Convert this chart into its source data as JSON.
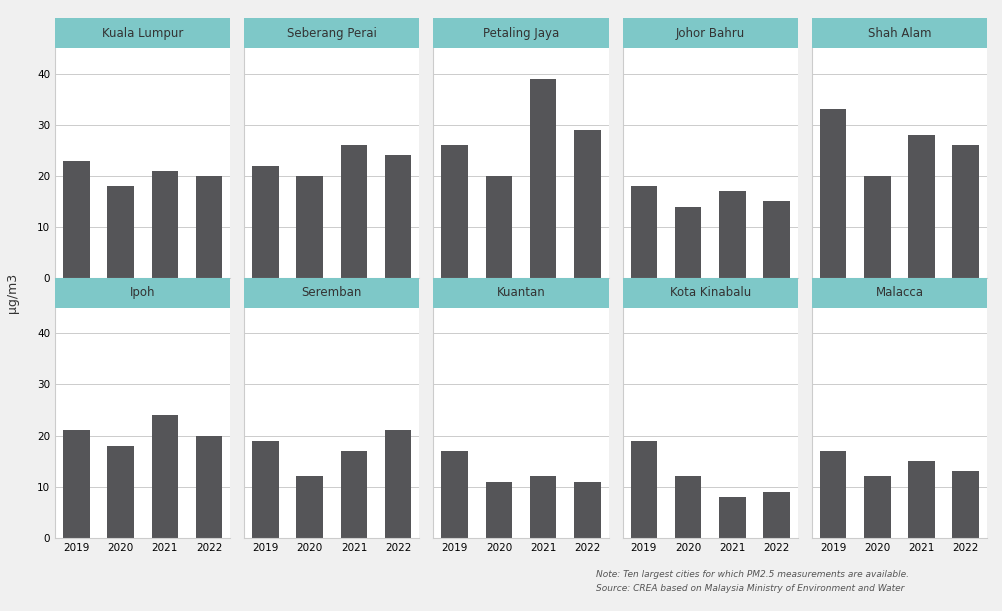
{
  "cities_row1": [
    "Kuala Lumpur",
    "Seberang Perai",
    "Petaling Jaya",
    "Johor Bahru",
    "Shah Alam"
  ],
  "cities_row2": [
    "Ipoh",
    "Seremban",
    "Kuantan",
    "Kota Kinabalu",
    "Malacca"
  ],
  "years": [
    2019,
    2020,
    2021,
    2022
  ],
  "values_row1": [
    [
      23,
      18,
      21,
      20
    ],
    [
      22,
      20,
      26,
      24
    ],
    [
      26,
      20,
      39,
      29
    ],
    [
      18,
      14,
      17,
      15
    ],
    [
      33,
      20,
      28,
      26
    ]
  ],
  "values_row2": [
    [
      21,
      18,
      24,
      20
    ],
    [
      19,
      12,
      17,
      21
    ],
    [
      17,
      11,
      12,
      11
    ],
    [
      19,
      12,
      8,
      9
    ],
    [
      17,
      12,
      15,
      13
    ]
  ],
  "bar_color": "#555558",
  "header_bg_color": "#7ec8c8",
  "header_text_color": "#333333",
  "ylabel": "μg/m3",
  "yticks": [
    0,
    10,
    20,
    30,
    40
  ],
  "background_color": "#f0f0f0",
  "plot_bg_color": "#ffffff",
  "note_line1": "Note: Ten largest cities for which PM2.5 measurements are available.",
  "note_line2": "Source: CREA based on Malaysia Ministry of Environment and Water",
  "grid_color": "#cccccc",
  "spine_color": "#cccccc"
}
